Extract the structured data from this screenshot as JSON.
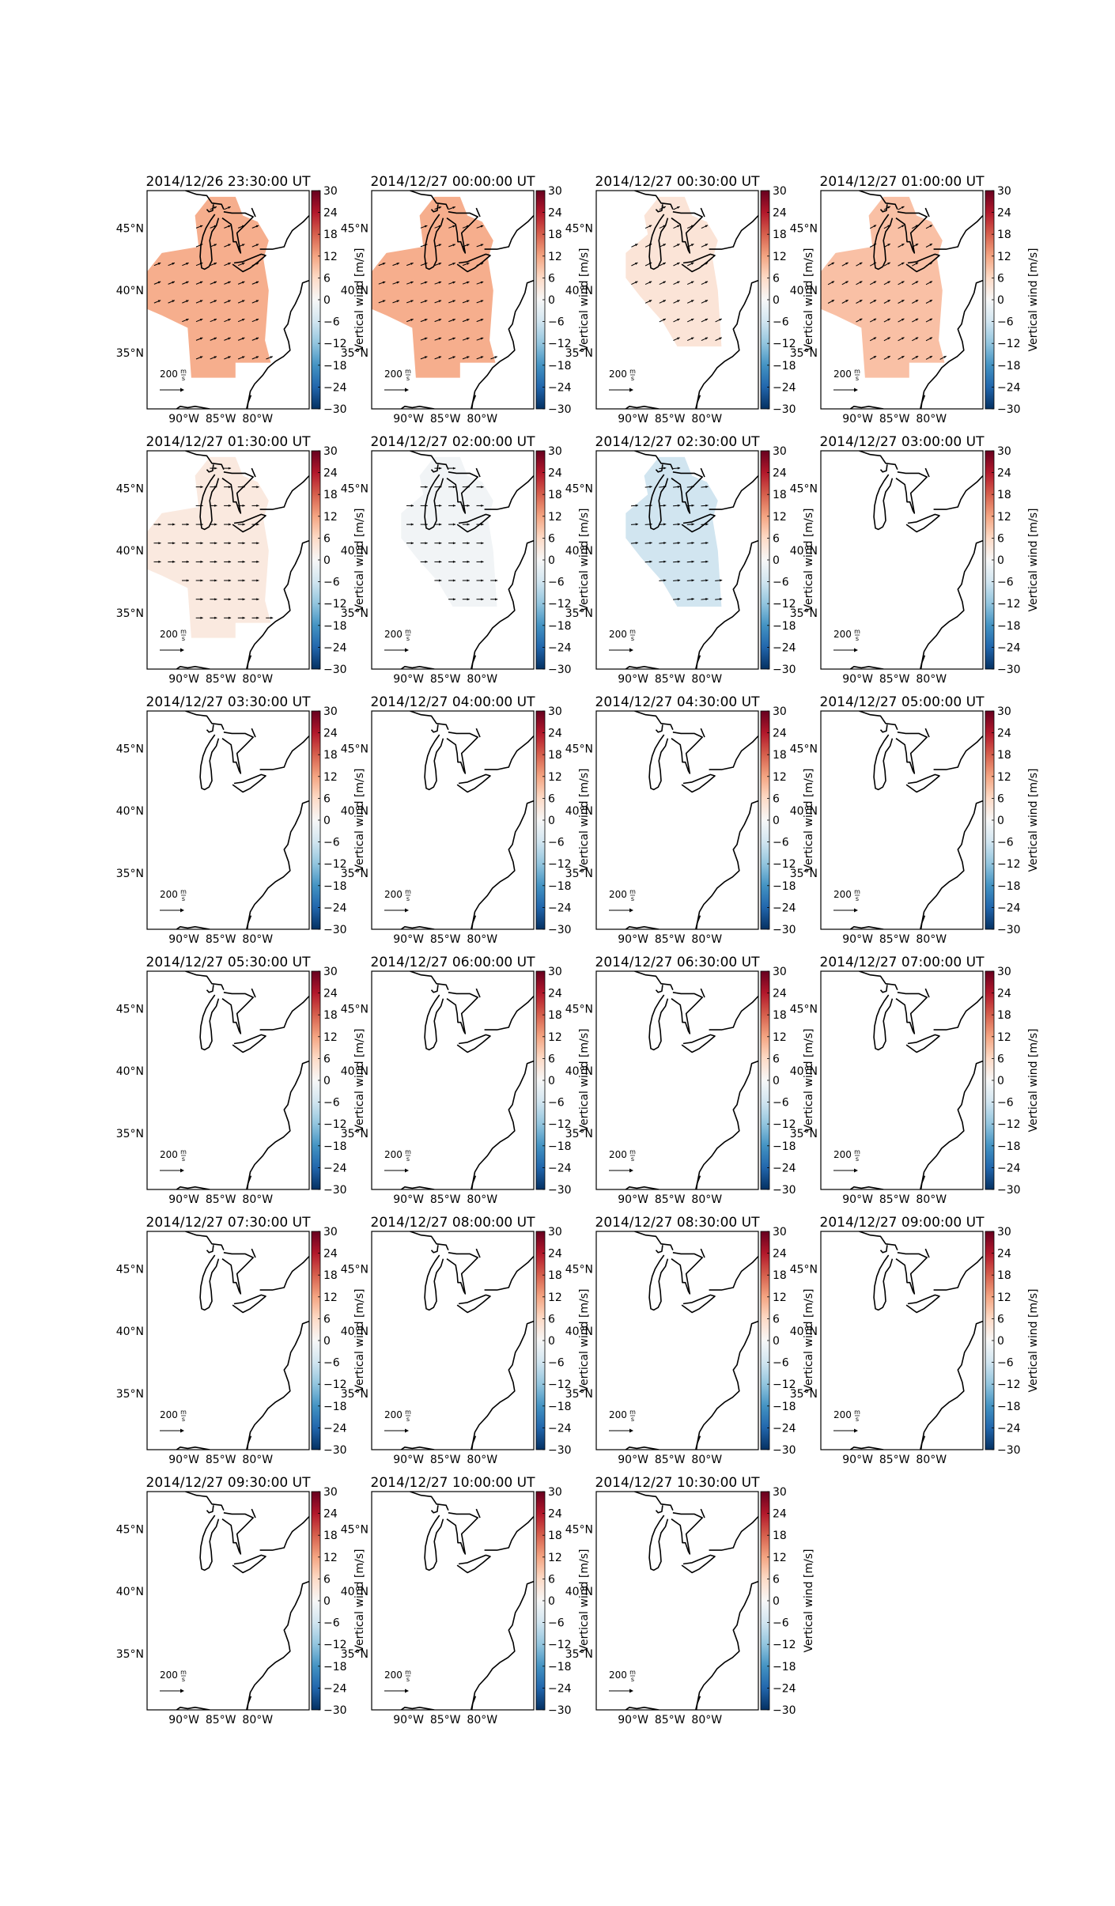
{
  "figure": {
    "colorbar_label": "Vertical wind [m/s]",
    "colorbar_ticks": [
      "30",
      "24",
      "18",
      "12",
      "6",
      "0",
      "−6",
      "−12",
      "−18",
      "−24",
      "−30"
    ],
    "lat_labels": [
      "45°N",
      "40°N",
      "35°N"
    ],
    "lon_labels": [
      "90°W",
      "85°W",
      "80°W"
    ],
    "scale_label": "200",
    "scale_unit_num": "m",
    "scale_unit_den": "s",
    "colormap": {
      "min": -30,
      "max": 30,
      "stops": [
        "#053061",
        "#2166ac",
        "#4393c3",
        "#92c5de",
        "#d1e5f0",
        "#f7f7f7",
        "#fddbc7",
        "#f4a582",
        "#d6604d",
        "#b2182b",
        "#67001f"
      ]
    }
  },
  "panels": [
    {
      "title": "2014/12/26 23:30:00 UT",
      "vertical_wind": 11,
      "coverage": "large",
      "arrow_angle": -22
    },
    {
      "title": "2014/12/27 00:00:00 UT",
      "vertical_wind": 11,
      "coverage": "large",
      "arrow_angle": -20
    },
    {
      "title": "2014/12/27 00:30:00 UT",
      "vertical_wind": 4,
      "coverage": "medium",
      "arrow_angle": -25
    },
    {
      "title": "2014/12/27 01:00:00 UT",
      "vertical_wind": 9,
      "coverage": "large",
      "arrow_angle": -28
    },
    {
      "title": "2014/12/27 01:30:00 UT",
      "vertical_wind": 3,
      "coverage": "large",
      "arrow_angle": 0
    },
    {
      "title": "2014/12/27 02:00:00 UT",
      "vertical_wind": -1,
      "coverage": "medium",
      "arrow_angle": 0
    },
    {
      "title": "2014/12/27 02:30:00 UT",
      "vertical_wind": -6,
      "coverage": "medium",
      "arrow_angle": -5
    },
    {
      "title": "2014/12/27 03:00:00 UT",
      "coverage": "none"
    },
    {
      "title": "2014/12/27 03:30:00 UT",
      "coverage": "none"
    },
    {
      "title": "2014/12/27 04:00:00 UT",
      "coverage": "none"
    },
    {
      "title": "2014/12/27 04:30:00 UT",
      "coverage": "none"
    },
    {
      "title": "2014/12/27 05:00:00 UT",
      "coverage": "none"
    },
    {
      "title": "2014/12/27 05:30:00 UT",
      "coverage": "none"
    },
    {
      "title": "2014/12/27 06:00:00 UT",
      "coverage": "none"
    },
    {
      "title": "2014/12/27 06:30:00 UT",
      "coverage": "none"
    },
    {
      "title": "2014/12/27 07:00:00 UT",
      "coverage": "none"
    },
    {
      "title": "2014/12/27 07:30:00 UT",
      "coverage": "none"
    },
    {
      "title": "2014/12/27 08:00:00 UT",
      "coverage": "none"
    },
    {
      "title": "2014/12/27 08:30:00 UT",
      "coverage": "none"
    },
    {
      "title": "2014/12/27 09:00:00 UT",
      "coverage": "none"
    },
    {
      "title": "2014/12/27 09:30:00 UT",
      "coverage": "none"
    },
    {
      "title": "2014/12/27 10:00:00 UT",
      "coverage": "none"
    },
    {
      "title": "2014/12/27 10:30:00 UT",
      "coverage": "none"
    }
  ]
}
